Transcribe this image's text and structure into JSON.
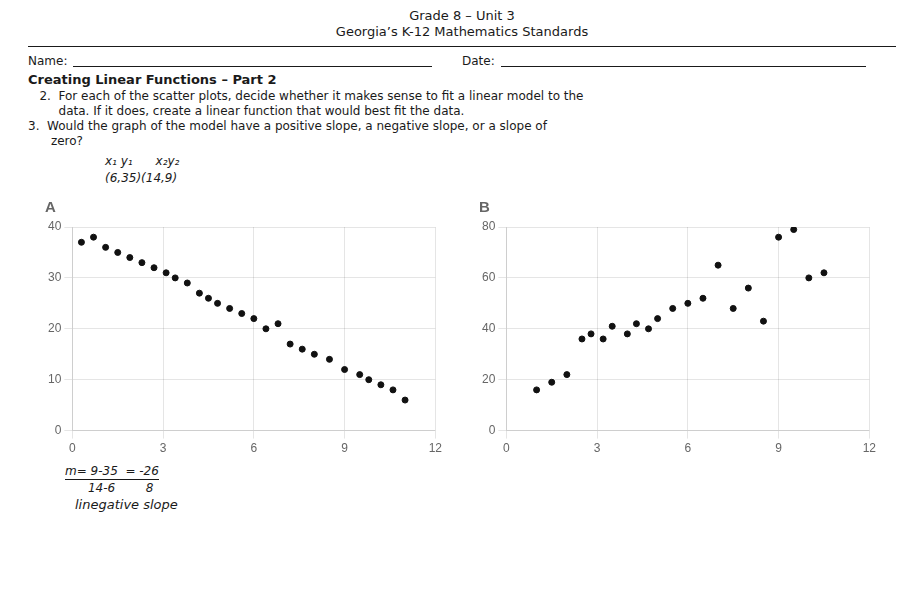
{
  "title": "Grade 8 – Unit 3",
  "subtitle": "Georgia’s K-12 Mathematics Standards",
  "annotations": [
    "Name:",
    "Date:",
    "Creating Linear Functions – Part 2",
    "   2.  For each of the scatter plots, decide whether it makes sense to fit a linear model to the",
    "        data. If it does, create a linear function that would best fit the data.",
    "3.  Would the graph of the model have a positive slope, a negative slope, or a slope of",
    "      zero?"
  ],
  "chart_data": [
    {
      "type": "scatter",
      "title": "A",
      "x": [
        0.3,
        0.7,
        1.1,
        1.5,
        1.9,
        2.3,
        2.7,
        3.1,
        3.4,
        3.8,
        4.2,
        4.5,
        4.8,
        5.2,
        5.6,
        6.0,
        6.4,
        6.8,
        7.2,
        7.6,
        8.0,
        8.5,
        9.0,
        9.5,
        9.8,
        10.2,
        10.6,
        11.0
      ],
      "values": [
        37,
        38,
        36,
        35,
        34,
        33,
        32,
        31,
        30,
        29,
        27,
        26,
        25,
        24,
        23,
        22,
        20,
        21,
        17,
        16,
        15,
        14,
        12,
        11,
        10,
        9,
        8,
        6
      ],
      "color": "#111111",
      "xlim": [
        0,
        12
      ],
      "ylim": [
        0,
        40
      ],
      "xticks": [
        0,
        3,
        6,
        9,
        12
      ],
      "yticks": [
        0,
        10,
        20,
        30,
        40
      ],
      "grid": true,
      "annotations": [
        "x₁ y₁      x₂y₂",
        "(6,35)(14,9)",
        "m= 9-35  = -26",
        "      14-6        8",
        "linegative slope"
      ]
    },
    {
      "type": "scatter",
      "title": "B",
      "x": [
        1.0,
        1.5,
        2.0,
        2.5,
        2.8,
        3.2,
        3.5,
        4.0,
        4.3,
        4.7,
        5.0,
        5.5,
        6.0,
        6.5,
        7.0,
        7.5,
        8.0,
        8.5,
        9.0,
        9.5,
        10.0,
        10.5
      ],
      "values": [
        16,
        19,
        22,
        36,
        38,
        36,
        41,
        38,
        42,
        40,
        44,
        48,
        50,
        52,
        65,
        48,
        56,
        43,
        76,
        79,
        60,
        62
      ],
      "color": "#111111",
      "xlim": [
        0,
        12
      ],
      "ylim": [
        0,
        80
      ],
      "xticks": [
        0,
        3,
        6,
        9,
        12
      ],
      "yticks": [
        0,
        20,
        40,
        60,
        80
      ],
      "grid": true
    }
  ]
}
